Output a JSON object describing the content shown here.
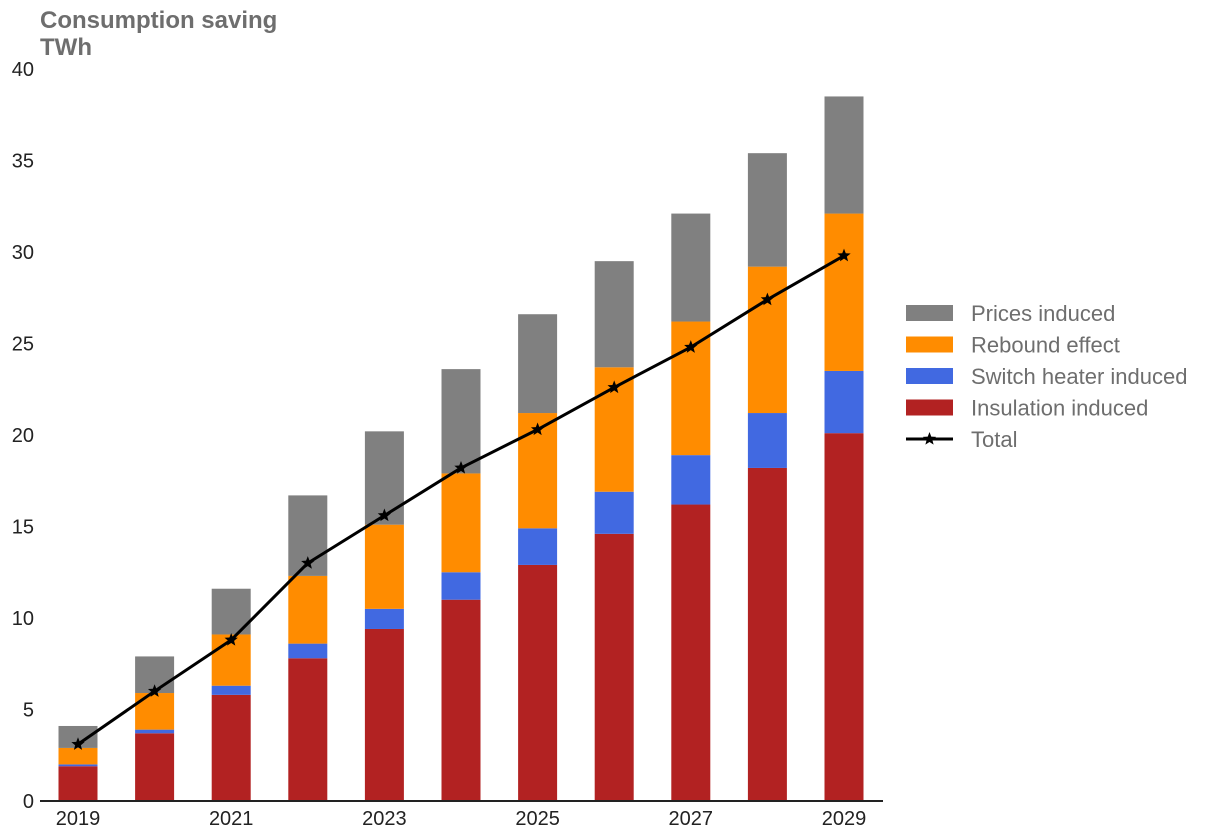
{
  "chart_data": {
    "type": "bar",
    "stacked": true,
    "title": "Consumption saving",
    "subtitle": "TWh",
    "xlabel": "",
    "ylabel": "",
    "ylim": [
      0,
      40
    ],
    "yticks": [
      0,
      5,
      10,
      15,
      20,
      25,
      30,
      35,
      40
    ],
    "categories": [
      "2019",
      "2020",
      "2021",
      "2022",
      "2023",
      "2024",
      "2025",
      "2026",
      "2027",
      "2028",
      "2029"
    ],
    "xtick_labels": [
      "2019",
      "2021",
      "2023",
      "2025",
      "2027",
      "2029"
    ],
    "grid": false,
    "legend_position": "right",
    "series": [
      {
        "name": "Insulation induced",
        "color": "#b22222",
        "values": [
          1.9,
          3.7,
          5.8,
          7.8,
          9.4,
          11.0,
          12.9,
          14.6,
          16.2,
          18.2,
          20.1
        ]
      },
      {
        "name": "Switch heater induced",
        "color": "#4169e1",
        "values": [
          0.1,
          0.2,
          0.5,
          0.8,
          1.1,
          1.5,
          2.0,
          2.3,
          2.7,
          3.0,
          3.4
        ]
      },
      {
        "name": "Rebound effect",
        "color": "#ff8c00",
        "values": [
          0.9,
          2.0,
          2.8,
          3.7,
          4.6,
          5.4,
          6.3,
          6.8,
          7.3,
          8.0,
          8.6
        ]
      },
      {
        "name": "Prices induced",
        "color": "#808080",
        "values": [
          1.2,
          2.0,
          2.5,
          4.4,
          5.1,
          5.7,
          5.4,
          5.8,
          5.9,
          6.2,
          6.4
        ]
      }
    ],
    "line_series": {
      "name": "Total",
      "color": "#000000",
      "marker": "star",
      "values": [
        3.1,
        6.0,
        8.8,
        13.0,
        15.6,
        18.2,
        20.3,
        22.6,
        24.8,
        27.4,
        29.8
      ]
    },
    "legend_order": [
      "Prices induced",
      "Rebound effect",
      "Switch heater induced",
      "Insulation induced",
      "Total"
    ]
  }
}
